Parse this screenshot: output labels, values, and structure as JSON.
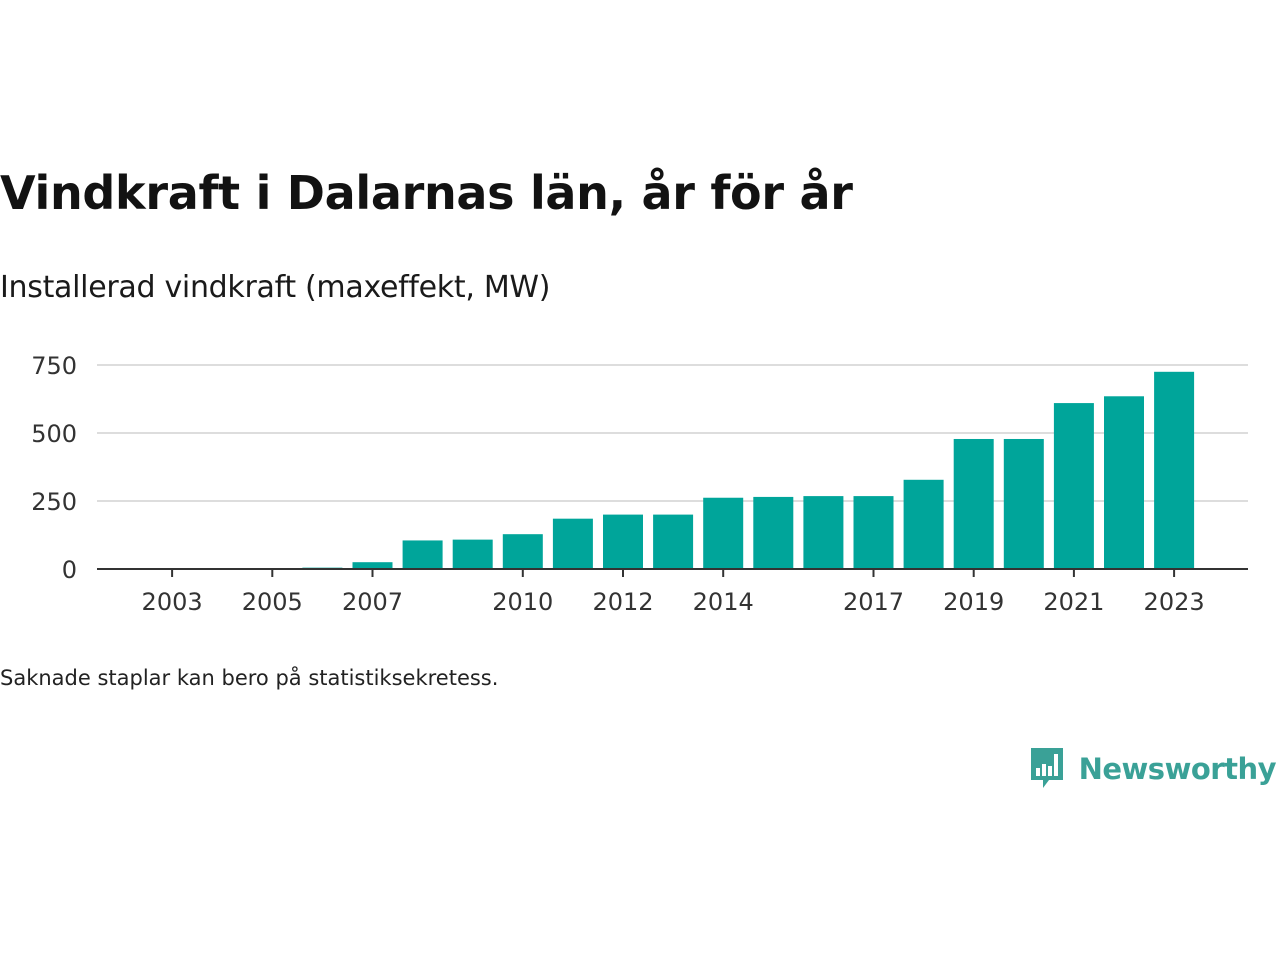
{
  "title": "Vindkraft i Dalarnas län, år för år",
  "subtitle": "Installerad vindkraft (maxeffekt, MW)",
  "footnote": "Saknade staplar kan bero på statistiksekretess.",
  "brand": {
    "name": "Newsworthy",
    "color": "#3aa197",
    "icon": "newsworthy-logo-icon"
  },
  "colors": {
    "bar": "#00a59a",
    "grid": "#dddddd",
    "axis": "#333333",
    "tick_text": "#333333"
  },
  "chart_data": {
    "type": "bar",
    "title": "",
    "xlabel": "",
    "ylabel": "",
    "categories": [
      "2002",
      "2003",
      "2004",
      "2005",
      "2006",
      "2007",
      "2008",
      "2009",
      "2010",
      "2011",
      "2012",
      "2013",
      "2014",
      "2015",
      "2016",
      "2017",
      "2018",
      "2019",
      "2020",
      "2021",
      "2022",
      "2023"
    ],
    "values": [
      0,
      0,
      0,
      1,
      5,
      25,
      105,
      108,
      128,
      185,
      200,
      200,
      262,
      265,
      268,
      268,
      328,
      478,
      478,
      610,
      635,
      725
    ],
    "x_tick_labels": [
      "2003",
      "2005",
      "2007",
      "2010",
      "2012",
      "2014",
      "2017",
      "2019",
      "2021",
      "2023"
    ],
    "y_ticks": [
      0,
      250,
      500,
      750
    ],
    "ylim": [
      0,
      750
    ],
    "grid": true,
    "legend": "none"
  }
}
